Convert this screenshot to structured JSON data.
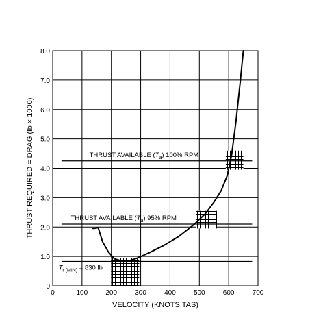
{
  "chart_data": {
    "type": "line",
    "title": "",
    "xlabel": "VELOCITY (KNOTS TAS)",
    "ylabel": "THRUST REQUIRED = DRAG (lb × 1000)",
    "xlim": [
      0,
      700
    ],
    "ylim": [
      0,
      8
    ],
    "x_ticks": [
      0,
      100,
      200,
      300,
      400,
      500,
      600,
      700
    ],
    "x_tick_labels": [
      "0",
      "100",
      "200",
      "300",
      "400",
      "500",
      "600",
      "700"
    ],
    "y_ticks": [
      0,
      1,
      2,
      3,
      4,
      5,
      6,
      7,
      8
    ],
    "y_tick_labels": [
      "0",
      "1.0",
      "2.0",
      "3.0",
      "4.0",
      "5.0",
      "6.0",
      "7.0",
      "8.0"
    ],
    "grid": true,
    "series": [
      {
        "name": "",
        "type": "curve",
        "x": [
          140,
          155,
          170,
          190,
          210,
          230,
          260,
          290,
          330,
          380,
          430,
          480,
          520,
          550,
          575,
          595,
          610,
          625,
          640,
          650
        ],
        "y": [
          1.95,
          1.98,
          1.5,
          1.15,
          0.92,
          0.86,
          0.85,
          0.95,
          1.13,
          1.38,
          1.68,
          2.07,
          2.45,
          2.85,
          3.25,
          3.75,
          4.45,
          5.6,
          7.0,
          8.0
        ]
      }
    ],
    "reference_lines": [
      {
        "y": 4.25,
        "label_prefix": "THRUST AVAILABLE (",
        "label_symbol": "T",
        "label_subscript": "a",
        "label_suffix": ") 100% RPM"
      },
      {
        "y": 2.1,
        "label_prefix": "THRUST AVAILABLE (",
        "label_symbol": "T",
        "label_subscript": "a",
        "label_suffix": ") 95% RPM"
      },
      {
        "y": 0.83,
        "label_prefix": "",
        "label_symbol": "T",
        "label_subscript": "r (MIN)",
        "label_suffix": " = 830 lb"
      }
    ],
    "hatched_regions": [
      {
        "x": [
          200,
          295
        ],
        "y": [
          0,
          0.95
        ]
      },
      {
        "x": [
          490,
          560
        ],
        "y": [
          1.95,
          2.55
        ]
      },
      {
        "x": [
          590,
          650
        ],
        "y": [
          3.95,
          4.6
        ]
      }
    ]
  }
}
